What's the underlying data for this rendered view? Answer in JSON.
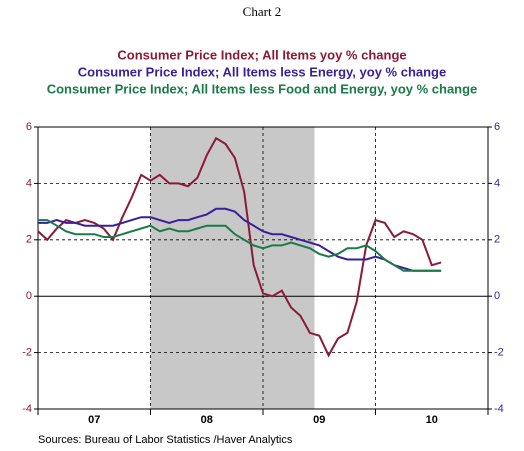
{
  "chart_data": {
    "type": "line",
    "title": "Chart 2",
    "source": "Sources:  Bureau of Labor Statistics /Haver Analytics",
    "x": [
      2007.0,
      2007.083,
      2007.167,
      2007.25,
      2007.333,
      2007.417,
      2007.5,
      2007.583,
      2007.667,
      2007.75,
      2007.833,
      2007.917,
      2008.0,
      2008.083,
      2008.167,
      2008.25,
      2008.333,
      2008.417,
      2008.5,
      2008.583,
      2008.667,
      2008.75,
      2008.833,
      2008.917,
      2009.0,
      2009.083,
      2009.167,
      2009.25,
      2009.333,
      2009.417,
      2009.5,
      2009.583,
      2009.667,
      2009.75,
      2009.833,
      2009.917,
      2010.0,
      2010.083,
      2010.167,
      2010.25,
      2010.333,
      2010.417,
      2010.5,
      2010.583
    ],
    "series": [
      {
        "name": "Consumer Price Index;  All Items  yoy  % change",
        "color": "#8b1a3a",
        "values": [
          2.3,
          2.0,
          2.4,
          2.7,
          2.6,
          2.7,
          2.6,
          2.4,
          2.0,
          2.8,
          3.5,
          4.3,
          4.1,
          4.3,
          4.0,
          4.0,
          3.9,
          4.2,
          5.0,
          5.6,
          5.4,
          4.9,
          3.7,
          1.1,
          0.1,
          0.0,
          0.2,
          -0.4,
          -0.7,
          -1.3,
          -1.4,
          -2.1,
          -1.5,
          -1.3,
          -0.2,
          1.8,
          2.7,
          2.6,
          2.1,
          2.3,
          2.2,
          2.0,
          1.1,
          1.2
        ]
      },
      {
        "name": "Consumer Price Index;  All Items less Energy, yoy  % change",
        "color": "#3a1f9a",
        "values": [
          2.6,
          2.6,
          2.7,
          2.6,
          2.6,
          2.5,
          2.5,
          2.5,
          2.5,
          2.6,
          2.7,
          2.8,
          2.8,
          2.7,
          2.6,
          2.7,
          2.7,
          2.8,
          2.9,
          3.1,
          3.1,
          3.0,
          2.7,
          2.5,
          2.3,
          2.2,
          2.2,
          2.1,
          2.0,
          1.9,
          1.8,
          1.6,
          1.4,
          1.3,
          1.3,
          1.3,
          1.4,
          1.3,
          1.1,
          1.0,
          0.9,
          0.9,
          0.9,
          0.9
        ]
      },
      {
        "name": "Consumer Price Index;  All Items less Food and Energy, yoy  % change",
        "color": "#1a7a4a",
        "values": [
          2.7,
          2.7,
          2.5,
          2.3,
          2.2,
          2.2,
          2.2,
          2.1,
          2.1,
          2.2,
          2.3,
          2.4,
          2.5,
          2.3,
          2.4,
          2.3,
          2.3,
          2.4,
          2.5,
          2.5,
          2.5,
          2.2,
          2.0,
          1.8,
          1.7,
          1.8,
          1.8,
          1.9,
          1.8,
          1.7,
          1.5,
          1.4,
          1.5,
          1.7,
          1.7,
          1.8,
          1.6,
          1.3,
          1.1,
          0.9,
          0.9,
          0.9,
          0.9,
          0.9
        ]
      }
    ],
    "xlim": [
      2007,
      2011
    ],
    "xticks": [
      2007,
      2008,
      2009,
      2010,
      2011
    ],
    "year_labels": [
      {
        "value": 2007.5,
        "label": "07"
      },
      {
        "value": 2008.5,
        "label": "08"
      },
      {
        "value": 2009.5,
        "label": "09"
      },
      {
        "value": 2010.5,
        "label": "10"
      }
    ],
    "shade": [
      2008,
      2009.458
    ],
    "shade_color": "#c8c8c8",
    "ylim": [
      -4,
      6
    ],
    "yticks": [
      -4,
      -2,
      0,
      2,
      4,
      6
    ],
    "grid": true,
    "left_tick_color": "#8b1a3a",
    "right_tick_color": "#3a1f9a"
  }
}
